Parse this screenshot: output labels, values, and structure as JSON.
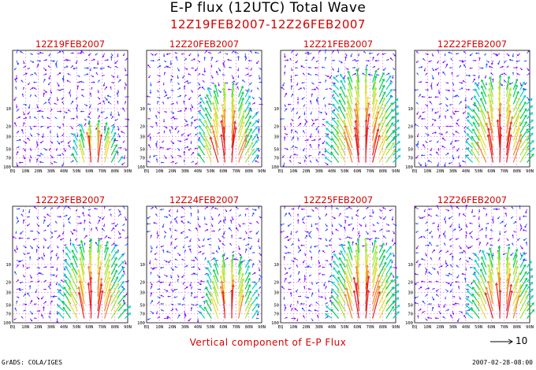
{
  "header": {
    "title": "E-P flux (12UTC) Total Wave",
    "subtitle": "12Z19FEB2007-12Z26FEB2007"
  },
  "footer": {
    "caption": "Vertical component of E-P Flux",
    "credit": "GrADS: COLA/IGES",
    "timestamp": "2007-02-28-08:00",
    "reference_vector_label": "10"
  },
  "colors": {
    "title": "#000000",
    "panel_title": "#d40000",
    "grid": "#d000d0",
    "palette": [
      "#7a00ff",
      "#1e3cff",
      "#00a0ff",
      "#00d0c0",
      "#00d050",
      "#a0e632",
      "#e6dc32",
      "#f08228",
      "#e61e1e"
    ]
  },
  "chart_data": {
    "type": "vector-field",
    "x_ticks": [
      "EQ",
      "10N",
      "20N",
      "30N",
      "40N",
      "50N",
      "60N",
      "70N",
      "80N",
      "90N"
    ],
    "y_ticks": [
      "10",
      "20",
      "30",
      "50",
      "70",
      "100"
    ],
    "y_tick_values": [
      10,
      20,
      30,
      50,
      70,
      100
    ],
    "xlim": [
      0,
      90
    ],
    "ylim": [
      100,
      1
    ],
    "y_scale": "log",
    "panels": [
      {
        "title": "12Z19FEB2007",
        "jet_center_lat": 65,
        "jet_width": 12,
        "jet_top_hpa": 25,
        "intensity": 0.95
      },
      {
        "title": "12Z20FEB2007",
        "jet_center_lat": 63,
        "jet_width": 15,
        "jet_top_hpa": 5,
        "intensity": 1.0
      },
      {
        "title": "12Z21FEB2007",
        "jet_center_lat": 65,
        "jet_width": 18,
        "jet_top_hpa": 3,
        "intensity": 1.0
      },
      {
        "title": "12Z22FEB2007",
        "jet_center_lat": 67,
        "jet_width": 17,
        "jet_top_hpa": 4,
        "intensity": 1.0
      },
      {
        "title": "12Z23FEB2007",
        "jet_center_lat": 63,
        "jet_width": 17,
        "jet_top_hpa": 5,
        "intensity": 0.95
      },
      {
        "title": "12Z24FEB2007",
        "jet_center_lat": 65,
        "jet_width": 14,
        "jet_top_hpa": 10,
        "intensity": 0.9
      },
      {
        "title": "12Z25FEB2007",
        "jet_center_lat": 65,
        "jet_width": 17,
        "jet_top_hpa": 5,
        "intensity": 1.0
      },
      {
        "title": "12Z26FEB2007",
        "jet_center_lat": 68,
        "jet_width": 17,
        "jet_top_hpa": 7,
        "intensity": 0.95
      }
    ]
  }
}
